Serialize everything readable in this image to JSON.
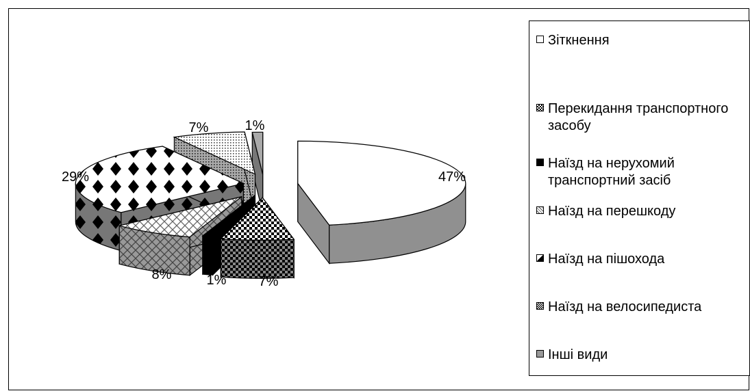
{
  "chart_data": {
    "type": "pie",
    "categories": [
      "Зіткнення",
      "Перекидання транспортного засобу",
      "Наїзд на нерухомий транспортний засіб",
      "Наїзд на перешкоду",
      "Наїзд на пішохода",
      "Наїзд на велосипедиста",
      "Інші види"
    ],
    "values": [
      47,
      7,
      1,
      8,
      29,
      7,
      1
    ],
    "labels": [
      "47%",
      "7%",
      "1%",
      "8%",
      "29%",
      "7%",
      "1%"
    ],
    "exploded": true,
    "three_d": true,
    "legend_position": "right"
  },
  "legend": {
    "items": [
      {
        "label": "Зіткнення",
        "pattern": "white"
      },
      {
        "label": "Перекидання транспортного засобу",
        "pattern": "checker"
      },
      {
        "label": "Наїзд на нерухомий транспортний засіб",
        "pattern": "black"
      },
      {
        "label": "Наїзд на перешкоду",
        "pattern": "crosshatch"
      },
      {
        "label": "Наїзд на пішохода",
        "pattern": "diamond"
      },
      {
        "label": "Наїзд на велосипедиста",
        "pattern": "dots"
      },
      {
        "label": "Інші види",
        "pattern": "gray"
      }
    ]
  }
}
